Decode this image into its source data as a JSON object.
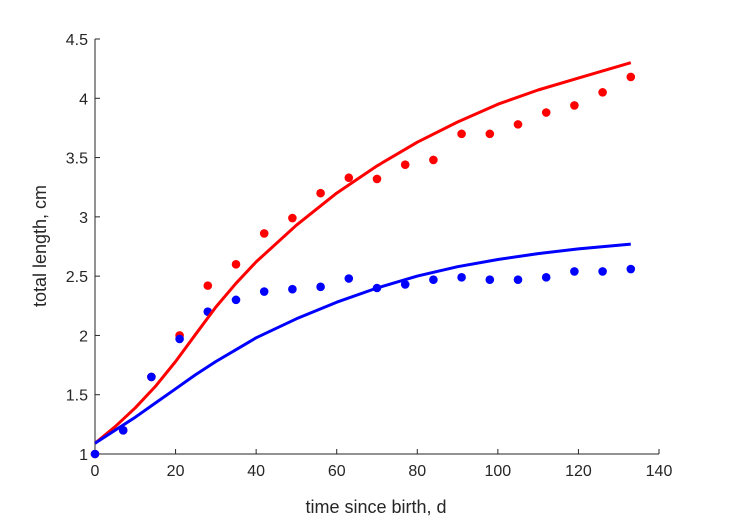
{
  "chart_data": {
    "type": "scatter",
    "xlabel": "time since birth, d",
    "ylabel": "total length, cm",
    "xlim": [
      0,
      140
    ],
    "ylim": [
      1,
      4.5
    ],
    "xticks": [
      "0",
      "20",
      "40",
      "60",
      "80",
      "100",
      "120",
      "140"
    ],
    "yticks": [
      "1",
      "1.5",
      "2",
      "2.5",
      "3",
      "3.5",
      "4",
      "4.5"
    ],
    "grid": false,
    "series": [
      {
        "color": "#ff0000",
        "marker": "dot",
        "x": [
          0,
          7,
          14,
          21,
          28,
          35,
          42,
          49,
          56,
          63,
          70,
          77,
          84,
          91,
          98,
          105,
          112,
          119,
          126,
          133
        ],
        "y": [
          1.0,
          1.2,
          1.65,
          2.0,
          2.42,
          2.6,
          2.86,
          2.99,
          3.2,
          3.33,
          3.32,
          3.44,
          3.48,
          3.7,
          3.7,
          3.78,
          3.88,
          3.94,
          4.05,
          4.18
        ]
      },
      {
        "color": "#0000ff",
        "marker": "dot",
        "x": [
          0,
          7,
          14,
          21,
          28,
          35,
          42,
          49,
          56,
          63,
          70,
          77,
          84,
          91,
          98,
          105,
          112,
          119,
          126,
          133
        ],
        "y": [
          1.0,
          1.2,
          1.65,
          1.97,
          2.2,
          2.3,
          2.37,
          2.39,
          2.41,
          2.48,
          2.4,
          2.43,
          2.47,
          2.49,
          2.47,
          2.47,
          2.49,
          2.54,
          2.54,
          2.56
        ]
      },
      {
        "color": "#ff0000",
        "marker": "line",
        "x": [
          0,
          5,
          10,
          15,
          20,
          25,
          30,
          35,
          40,
          50,
          60,
          70,
          80,
          90,
          100,
          110,
          120,
          133
        ],
        "y": [
          1.09,
          1.23,
          1.39,
          1.57,
          1.78,
          2.01,
          2.24,
          2.44,
          2.62,
          2.93,
          3.2,
          3.43,
          3.63,
          3.8,
          3.95,
          4.07,
          4.17,
          4.3
        ]
      },
      {
        "color": "#0000ff",
        "marker": "line",
        "x": [
          0,
          5,
          10,
          15,
          20,
          25,
          30,
          35,
          40,
          50,
          60,
          70,
          80,
          90,
          100,
          110,
          120,
          133
        ],
        "y": [
          1.09,
          1.2,
          1.31,
          1.43,
          1.55,
          1.67,
          1.78,
          1.88,
          1.98,
          2.14,
          2.28,
          2.4,
          2.5,
          2.58,
          2.64,
          2.69,
          2.73,
          2.77
        ]
      }
    ]
  }
}
